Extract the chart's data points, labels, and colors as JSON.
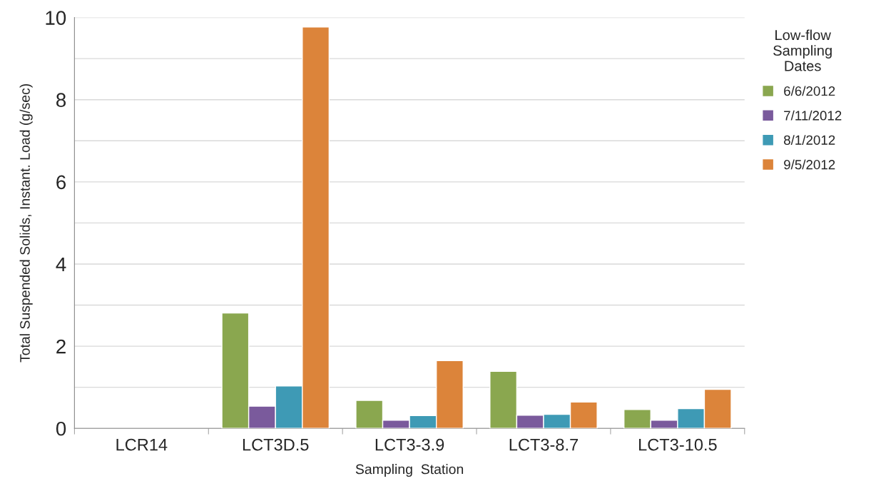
{
  "chart_data": {
    "type": "bar",
    "xlabel": "Sampling  Station",
    "ylabel": "Total Suspended Solids, Instant. Load (g/sec)",
    "legend_title": "Low-flow\nSampling\nDates",
    "categories": [
      "LCR14",
      "LCT3D.5",
      "LCT3-3.9",
      "LCT3-8.7",
      "LCT3-10.5"
    ],
    "series": [
      {
        "name": "6/6/2012",
        "color": "#8aa74f",
        "values": [
          null,
          2.81,
          0.68,
          1.39,
          0.46
        ]
      },
      {
        "name": "7/11/2012",
        "color": "#7a5a9c",
        "values": [
          null,
          0.54,
          0.2,
          0.32,
          0.2
        ]
      },
      {
        "name": "8/1/2012",
        "color": "#3e9ab5",
        "values": [
          null,
          1.03,
          0.31,
          0.34,
          0.48
        ]
      },
      {
        "name": "9/5/2012",
        "color": "#dc843a",
        "values": [
          null,
          9.77,
          1.65,
          0.64,
          0.95
        ]
      }
    ],
    "ylim": [
      0,
      10
    ],
    "yticks": [
      0,
      {
        "value": 1,
        "label": null
      },
      2,
      {
        "value": 3,
        "label": null
      },
      4,
      {
        "value": 5,
        "label": null
      },
      6,
      {
        "value": 7,
        "label": null
      },
      8,
      {
        "value": 9,
        "label": null
      },
      10
    ],
    "grid": "y",
    "legend": "right"
  }
}
